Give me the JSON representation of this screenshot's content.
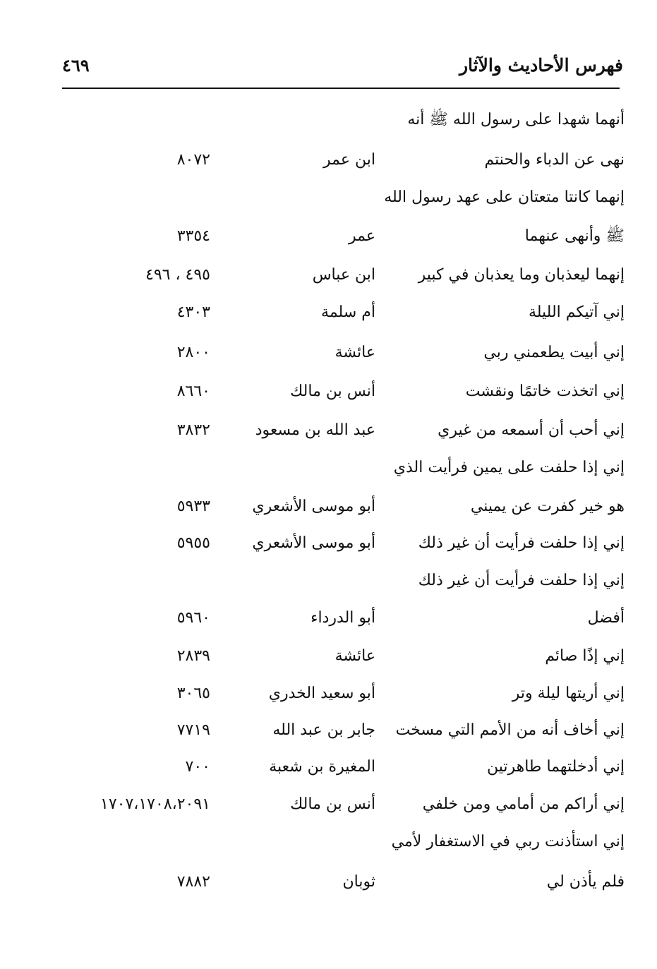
{
  "header": {
    "title": "فهرس الأحاديث والآثار",
    "page_number": "٤٦٩"
  },
  "rows": [
    {
      "text": "أنهما شهدا على رسول الله ﷺ أنه"
    },
    {
      "text": "نهى عن الدباء والحنتم",
      "narrator": "ابن عمر",
      "refs": "٨٠٧٢"
    },
    {
      "text": "إنهما كانتا متعتان على عهد رسول الله"
    },
    {
      "text": "ﷺ وأنهى عنهما",
      "narrator": "عمر",
      "refs": "٣٣٥٤"
    },
    {
      "text": "إنهما ليعذبان وما يعذبان في كبير",
      "narrator": "ابن عباس",
      "refs": "٤٩٥ ، ٤٩٦"
    },
    {
      "text": "إني آتيكم الليلة",
      "narrator": "أم سلمة",
      "refs": "٤٣٠٣"
    },
    {
      "text": "إني أبيت يطعمني ربي",
      "narrator": "عائشة",
      "refs": "٢٨٠٠"
    },
    {
      "text": "إني اتخذت خاتمًا ونقشت",
      "narrator": "أنس بن مالك",
      "refs": "٨٦٦٠"
    },
    {
      "text": "إني أحب أن أسمعه من غيري",
      "narrator": "عبد الله بن مسعود",
      "refs": "٣٨٣٢"
    },
    {
      "text": "إني إذا حلفت على يمين فرأيت الذي"
    },
    {
      "text": "هو خير كفرت عن يميني",
      "narrator": "أبو موسى الأشعري",
      "refs": "٥٩٣٣"
    },
    {
      "text": "إني إذا حلفت فرأيت أن غير ذلك",
      "narrator": "أبو موسى الأشعري",
      "refs": "٥٩٥٥"
    },
    {
      "text": "إني إذا حلفت فرأيت أن غير ذلك"
    },
    {
      "text": "أفضل",
      "narrator": "أبو الدرداء",
      "refs": "٥٩٦٠"
    },
    {
      "text": "إني إذًا صائم",
      "narrator": "عائشة",
      "refs": "٢٨٣٩"
    },
    {
      "text": "إني أريتها ليلة وتر",
      "narrator": "أبو سعيد الخدري",
      "refs": "٣٠٦٥"
    },
    {
      "text": "إني أخاف أنه من الأمم التي مسخت",
      "narrator": "جابر بن عبد الله",
      "refs": "٧٧١٩"
    },
    {
      "text": "إني أدخلتهما طاهرتين",
      "narrator": "المغيرة بن شعبة",
      "refs": "٧٠٠"
    },
    {
      "text": "إني أراكم من أمامي ومن خلفي",
      "narrator": "أنس بن مالك",
      "refs": "١٧٠٧،١٧٠٨،٢٠٩١"
    },
    {
      "text": "إني استأذنت ربي في الاستغفار لأمي"
    },
    {
      "text": "فلم يأذن لي",
      "narrator": "ثوبان",
      "refs": "٧٨٨٢"
    }
  ]
}
